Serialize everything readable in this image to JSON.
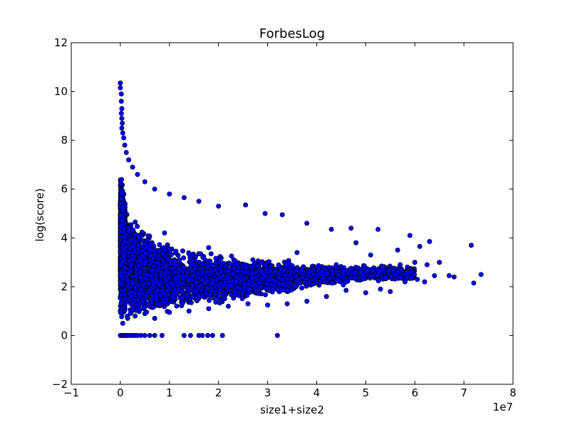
{
  "chart_data": {
    "type": "scatter",
    "title": "ForbesLog",
    "xlabel": "size1+size2",
    "ylabel": "log(score)",
    "x_multiplier_label": "1e7",
    "xlim": [
      -10000000,
      80000000
    ],
    "ylim": [
      -2,
      12
    ],
    "x_ticks": [
      -10000000,
      0,
      10000000,
      20000000,
      30000000,
      40000000,
      50000000,
      60000000,
      70000000,
      80000000
    ],
    "x_tick_labels": [
      "−1",
      "0",
      "1",
      "2",
      "3",
      "4",
      "5",
      "6",
      "7",
      "8"
    ],
    "y_ticks": [
      -2,
      0,
      2,
      4,
      6,
      8,
      10,
      12
    ],
    "y_tick_labels": [
      "−2",
      "0",
      "2",
      "4",
      "6",
      "8",
      "10",
      "12"
    ],
    "grid": false,
    "legend": "none",
    "colors": {
      "marker_fill": "#0000ff",
      "marker_edge": "#000000"
    },
    "points": [
      [
        0,
        10.35
      ],
      [
        0,
        10.15
      ],
      [
        200000,
        9.9
      ],
      [
        200000,
        9.6
      ],
      [
        300000,
        9.3
      ],
      [
        200000,
        9.1
      ],
      [
        300000,
        8.9
      ],
      [
        400000,
        8.7
      ],
      [
        300000,
        8.5
      ],
      [
        500000,
        8.3
      ],
      [
        700000,
        8.1
      ],
      [
        900000,
        7.8
      ],
      [
        1200000,
        7.5
      ],
      [
        1700000,
        7.2
      ],
      [
        2500000,
        6.9
      ],
      [
        3500000,
        6.6
      ],
      [
        5000000,
        6.3
      ],
      [
        7000000,
        6.0
      ],
      [
        10000000,
        5.8
      ],
      [
        13000000,
        5.65
      ],
      [
        16000000,
        5.5
      ],
      [
        20000000,
        5.3
      ],
      [
        25500000,
        5.35
      ],
      [
        29500000,
        5.0
      ],
      [
        33000000,
        4.95
      ],
      [
        38000000,
        4.6
      ],
      [
        43000000,
        4.35
      ],
      [
        47000000,
        4.4
      ],
      [
        52500000,
        4.35
      ],
      [
        56500000,
        3.5
      ],
      [
        59000000,
        4.1
      ],
      [
        61000000,
        3.65
      ],
      [
        63000000,
        3.85
      ],
      [
        65000000,
        3.0
      ],
      [
        71500000,
        3.7
      ],
      [
        73500000,
        2.5
      ],
      [
        72000000,
        2.15
      ],
      [
        68000000,
        2.4
      ],
      [
        67000000,
        2.45
      ],
      [
        64000000,
        2.45
      ],
      [
        62000000,
        2.2
      ],
      [
        60500000,
        2.3
      ],
      [
        58000000,
        2.2
      ],
      [
        55000000,
        1.8
      ],
      [
        53000000,
        1.9
      ],
      [
        50000000,
        1.75
      ],
      [
        46000000,
        1.85
      ],
      [
        42000000,
        1.6
      ],
      [
        38000000,
        1.4
      ],
      [
        34000000,
        1.3
      ],
      [
        30000000,
        1.25
      ],
      [
        26000000,
        1.3
      ],
      [
        22000000,
        1.2
      ],
      [
        18000000,
        1.1
      ],
      [
        14000000,
        1.0
      ],
      [
        10000000,
        0.95
      ],
      [
        7000000,
        0.7
      ],
      [
        5000000,
        0.9
      ],
      [
        3000000,
        0.8
      ],
      [
        1500000,
        0.7
      ],
      [
        500000,
        0.5
      ],
      [
        0,
        0
      ],
      [
        300000,
        0
      ],
      [
        600000,
        0
      ],
      [
        900000,
        0
      ],
      [
        1200000,
        0
      ],
      [
        1500000,
        0
      ],
      [
        2000000,
        0
      ],
      [
        2500000,
        0
      ],
      [
        3000000,
        0
      ],
      [
        3500000,
        0
      ],
      [
        4200000,
        0
      ],
      [
        5000000,
        0
      ],
      [
        6000000,
        0
      ],
      [
        7000000,
        0
      ],
      [
        8500000,
        0
      ],
      [
        13000000,
        0
      ],
      [
        14300000,
        0
      ],
      [
        16000000,
        0
      ],
      [
        16700000,
        0
      ],
      [
        17800000,
        0
      ],
      [
        18800000,
        0
      ],
      [
        20800000,
        0
      ],
      [
        32000000,
        0
      ],
      [
        9000000,
        4.2
      ],
      [
        18000000,
        3.6
      ],
      [
        27000000,
        3.1
      ],
      [
        36000000,
        3.4
      ],
      [
        44000000,
        2.9
      ],
      [
        49000000,
        2.6
      ],
      [
        51000000,
        3.3
      ],
      [
        53500000,
        2.8
      ],
      [
        57000000,
        2.9
      ],
      [
        58500000,
        2.6
      ],
      [
        60000000,
        3.0
      ],
      [
        62500000,
        2.9
      ],
      [
        48000000,
        3.8
      ],
      [
        46000000,
        2.2
      ]
    ]
  }
}
